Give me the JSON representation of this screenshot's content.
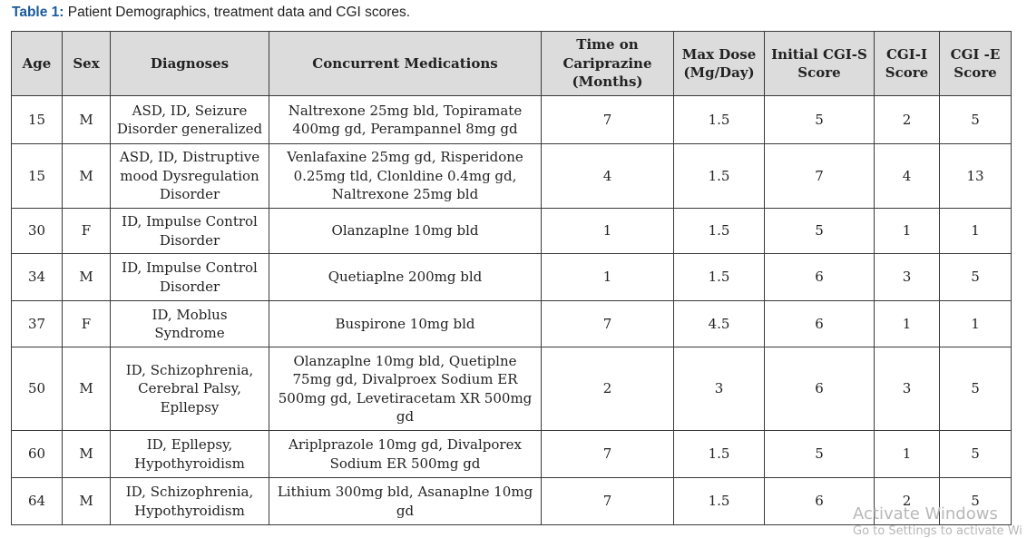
{
  "caption": {
    "label": "Table 1:",
    "text": " Patient Demographics, treatment data and CGI scores."
  },
  "table": {
    "headers": [
      "Age",
      "Sex",
      "Diagnoses",
      "Concurrent Medications",
      "Time on Cariprazine (Months)",
      "Max Dose (Mg/Day)",
      "Initial CGI-S Score",
      "CGI-I Score",
      "CGI -E Score"
    ],
    "rows": [
      [
        "15",
        "M",
        "ASD, ID, Seizure Disorder generalized",
        "Naltrexone 25mg bld, Topiramate 400mg gd, Perampannel 8mg gd",
        "7",
        "1.5",
        "5",
        "2",
        "5"
      ],
      [
        "15",
        "M",
        "ASD, ID, Distruptive mood Dysregulation Disorder",
        "Venlafaxine 25mg gd, Risperidone 0.25mg tld, Clonldine 0.4mg gd, Naltrexone 25mg bld",
        "4",
        "1.5",
        "7",
        "4",
        "13"
      ],
      [
        "30",
        "F",
        "ID, Impulse Control Disorder",
        "Olanzaplne 10mg bld",
        "1",
        "1.5",
        "5",
        "1",
        "1"
      ],
      [
        "34",
        "M",
        "ID, Impulse Control Disorder",
        "Quetiaplne 200mg bld",
        "1",
        "1.5",
        "6",
        "3",
        "5"
      ],
      [
        "37",
        "F",
        "ID, Moblus Syndrome",
        "Buspirone 10mg bld",
        "7",
        "4.5",
        "6",
        "1",
        "1"
      ],
      [
        "50",
        "M",
        "ID, Schizophrenia, Cerebral Palsy, Epllepsy",
        "Olanzaplne 10mg bld, Quetiplne 75mg gd, Divalproex Sodium ER 500mg gd, Levetiracetam XR 500mg gd",
        "2",
        "3",
        "6",
        "3",
        "5"
      ],
      [
        "60",
        "M",
        "ID, Epllepsy, Hypothyroidism",
        "Ariplprazole 10mg gd, Divalporex Sodium ER 500mg gd",
        "7",
        "1.5",
        "5",
        "1",
        "5"
      ],
      [
        "64",
        "M",
        "ID, Schizophrenia, Hypothyroidism",
        "Lithium 300mg bld, Asanaplne 10mg gd",
        "7",
        "1.5",
        "6",
        "2",
        "5"
      ]
    ]
  },
  "watermark": {
    "title": "Activate Windows",
    "subtitle": "Go to Settings to activate Wi"
  }
}
